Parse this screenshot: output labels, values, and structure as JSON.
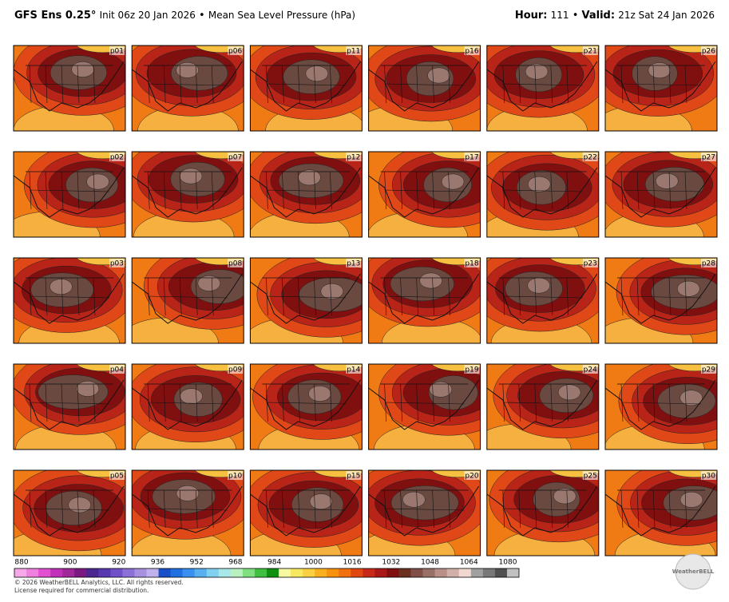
{
  "header": {
    "model": "GFS Ens 0.25°",
    "init": "Init 06z 20 Jan 2026",
    "separator": "•",
    "variable": "Mean Sea Level Pressure (hPa)",
    "hour_label": "Hour:",
    "hour": "111",
    "valid_label": "Valid:",
    "valid": "21z Sat 24 Jan 2026"
  },
  "panels": [
    "p01",
    "p02",
    "p03",
    "p04",
    "p05",
    "p06",
    "p07",
    "p08",
    "p09",
    "p10",
    "p11",
    "p12",
    "p13",
    "p14",
    "p15",
    "p16",
    "p17",
    "p18",
    "p19",
    "p20",
    "p21",
    "p22",
    "p23",
    "p24",
    "p25",
    "p26",
    "p27",
    "p28",
    "p29",
    "p30"
  ],
  "colorbar": {
    "labels": [
      880,
      900,
      920,
      936,
      952,
      968,
      984,
      1000,
      1016,
      1032,
      1048,
      1064,
      1080
    ],
    "colors": [
      "#f7a8e8",
      "#f080e0",
      "#e050d0",
      "#c030b8",
      "#a02898",
      "#7a1a80",
      "#4a2890",
      "#5838b0",
      "#7050c8",
      "#8c70d8",
      "#a890e0",
      "#c0b0ec",
      "#1850c8",
      "#2070e0",
      "#3890f0",
      "#58b0f0",
      "#80d0f0",
      "#a8e8e8",
      "#b8f0c0",
      "#80e080",
      "#40c040",
      "#109010",
      "#f8f8a0",
      "#f8e860",
      "#f8d040",
      "#f8b020",
      "#f89010",
      "#f07010",
      "#e04810",
      "#c82818",
      "#a81818",
      "#801010",
      "#6a3020",
      "#805048",
      "#987068",
      "#b89088",
      "#d0b0a8",
      "#f0d8d0",
      "#a0a0a0",
      "#787878",
      "#505050",
      "#c0c0c0"
    ]
  },
  "footer": {
    "copyright": "© 2026 WeatherBELL Analytics, LLC. All rights reserved.",
    "license": "License required for commercial distribution.",
    "logo": "WeatherBELL"
  }
}
